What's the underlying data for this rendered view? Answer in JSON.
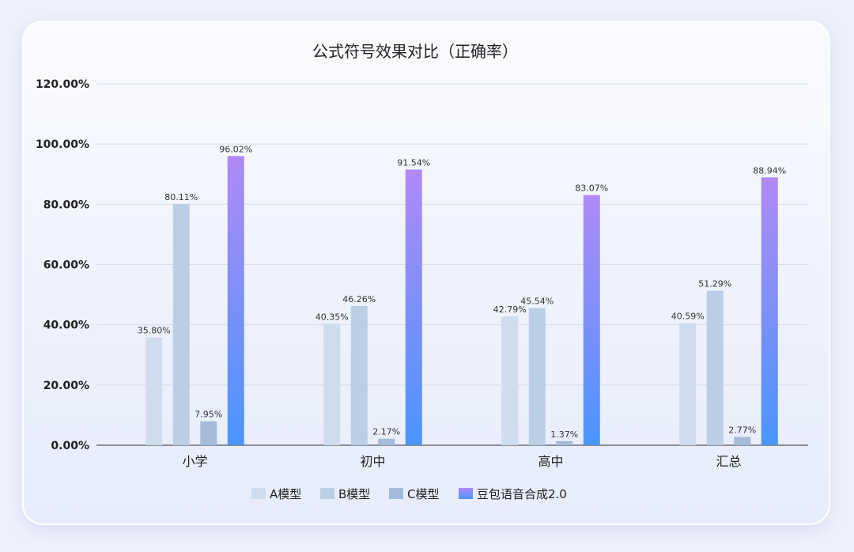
{
  "chart_data": {
    "type": "bar",
    "title": "公式符号效果对比（正确率）",
    "categories": [
      "小学",
      "初中",
      "高中",
      "汇总"
    ],
    "ylim": [
      0,
      120
    ],
    "yticks": [
      "0.00%",
      "20.00%",
      "40.00%",
      "60.00%",
      "80.00%",
      "100.00%",
      "120.00%"
    ],
    "grid": true,
    "legend_position": "bottom",
    "series": [
      {
        "name": "A模型",
        "values": [
          35.8,
          40.35,
          42.79,
          40.59
        ],
        "labels": [
          "35.80%",
          "40.35%",
          "42.79%",
          "40.59%"
        ],
        "color": "#cfdcee"
      },
      {
        "name": "B模型",
        "values": [
          80.11,
          46.26,
          45.54,
          51.29
        ],
        "labels": [
          "80.11%",
          "46.26%",
          "45.54%",
          "51.29%"
        ],
        "color": "#bccde6"
      },
      {
        "name": "C模型",
        "values": [
          7.95,
          2.17,
          1.37,
          2.77
        ],
        "labels": [
          "7.95%",
          "2.17%",
          "1.37%",
          "2.77%"
        ],
        "color": "#a6bbdb"
      },
      {
        "name": "豆包语音合成2.0",
        "values": [
          96.02,
          91.54,
          83.07,
          88.94
        ],
        "labels": [
          "96.02%",
          "91.54%",
          "83.07%",
          "88.94%"
        ],
        "color_top": "#b08af5",
        "color_bottom": "#4a95ff"
      }
    ]
  }
}
